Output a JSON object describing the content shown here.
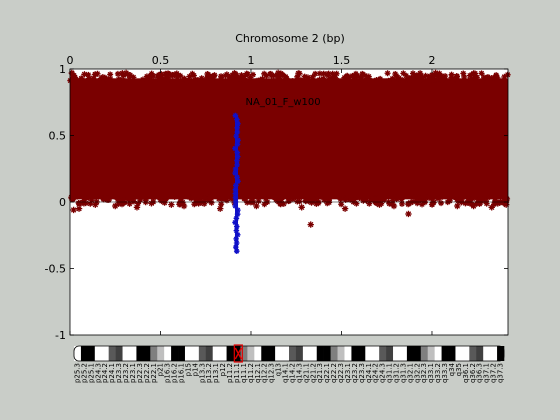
{
  "window": {
    "background": "#c9cdc8"
  },
  "chart_data": {
    "type": "scatter",
    "title": "Chromosome 2 (bp)",
    "x_axis": {
      "position": "top",
      "range": [
        0,
        2.42
      ],
      "ticks": [
        0,
        0.5,
        1,
        1.5,
        2
      ],
      "tick_labels": [
        "0",
        "0.5",
        "1",
        "1.5",
        "2"
      ]
    },
    "y_axis": {
      "range": [
        -1,
        1
      ],
      "ticks": [
        -1,
        -0.5,
        0,
        0.5,
        1
      ],
      "tick_labels": [
        "-1",
        "-0.5",
        "0",
        "0.5",
        "1"
      ]
    },
    "grid": false,
    "zero_line": true,
    "series": [
      {
        "color": "#7a0000",
        "marker": "asterisk",
        "description_points": "dense band across chromosome",
        "band": {
          "x_start": 0.0,
          "x_end": 2.42,
          "y_low": 0.02,
          "y_high": 0.93
        },
        "outliers": [
          {
            "x": 0.02,
            "y": -0.06
          },
          {
            "x": 0.05,
            "y": -0.05
          },
          {
            "x": 0.14,
            "y": -0.02
          },
          {
            "x": 0.25,
            "y": -0.03
          },
          {
            "x": 0.37,
            "y": -0.04
          },
          {
            "x": 0.45,
            "y": -0.01
          },
          {
            "x": 0.56,
            "y": -0.02
          },
          {
            "x": 0.63,
            "y": -0.03
          },
          {
            "x": 0.83,
            "y": -0.05
          },
          {
            "x": 1.03,
            "y": -0.03
          },
          {
            "x": 1.28,
            "y": -0.04
          },
          {
            "x": 1.33,
            "y": -0.17
          },
          {
            "x": 1.52,
            "y": -0.05
          },
          {
            "x": 1.71,
            "y": -0.02
          },
          {
            "x": 1.79,
            "y": -0.03
          },
          {
            "x": 1.87,
            "y": -0.09
          },
          {
            "x": 2.14,
            "y": -0.03
          },
          {
            "x": 2.23,
            "y": -0.03
          },
          {
            "x": 2.33,
            "y": -0.04
          },
          {
            "x": 2.41,
            "y": -0.02
          },
          {
            "x": 0.01,
            "y": 0.97
          },
          {
            "x": 0.08,
            "y": 0.96
          },
          {
            "x": 0.31,
            "y": 0.97
          },
          {
            "x": 0.53,
            "y": 0.96
          },
          {
            "x": 0.86,
            "y": 0.95
          },
          {
            "x": 1.15,
            "y": 0.97
          },
          {
            "x": 1.42,
            "y": 0.96
          },
          {
            "x": 1.63,
            "y": 0.95
          },
          {
            "x": 2.02,
            "y": 0.97
          },
          {
            "x": 2.21,
            "y": 0.95
          },
          {
            "x": 2.4,
            "y": 0.94
          }
        ]
      },
      {
        "color": "#1010c8",
        "marker": "asterisk",
        "x": 0.92,
        "y_range": [
          -0.37,
          0.65
        ],
        "label": "NA_01_F_w100"
      }
    ],
    "annotations": [
      {
        "text": "NA_01_F_w100",
        "x": 0.97,
        "y": 0.73
      }
    ],
    "ideogram": {
      "chromosome": "2",
      "centromere_x": 0.93,
      "highlight_color": "#e00000",
      "band_labels": [
        "p25.3",
        "p25.2",
        "p25.1",
        "p24.3",
        "p24.2",
        "p24.1",
        "p23.3",
        "p23.2",
        "p23.1",
        "p22.3",
        "p22.2",
        "p22.1",
        "p21",
        "p16.3",
        "p16.2",
        "p16.1",
        "p15",
        "p14",
        "p13.3",
        "p13.2",
        "p13.1",
        "p12",
        "p11.2",
        "p11.1",
        "q11.1",
        "q11.2",
        "q12.1",
        "q12.2",
        "q12.3",
        "q13",
        "q14.1",
        "q14.2",
        "q14.3",
        "q21.1",
        "q21.2",
        "q21.3",
        "q22.1",
        "q22.2",
        "q22.3",
        "q23.1",
        "q23.2",
        "q23.3",
        "q24.1",
        "q24.2",
        "q24.3",
        "q31.1",
        "q31.2",
        "q31.3",
        "q32.1",
        "q32.2",
        "q32.3",
        "q33.1",
        "q33.2",
        "q33.3",
        "q34",
        "q35",
        "q36.1",
        "q36.2",
        "q36.3",
        "q37.1",
        "q37.2",
        "q37.3"
      ]
    }
  }
}
